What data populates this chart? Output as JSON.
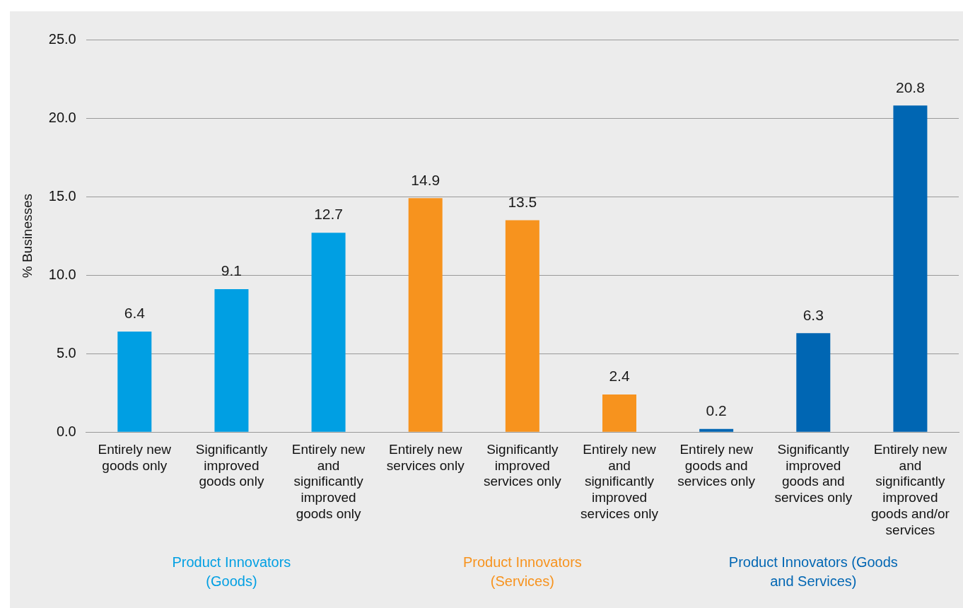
{
  "chart_data": {
    "type": "bar",
    "ylabel": "% Businesses",
    "categories": [
      "Entirely new goods only",
      "Significantly improved goods only",
      "Entirely new and significantly improved goods only",
      "Entirely new services only",
      "Significantly improved services only",
      "Entirely new and significantly improved services only",
      "Entirely new goods and services only",
      "Significantly improved goods and services only",
      "Entirely new and significantly improved goods and/or services"
    ],
    "series": [
      {
        "name": "Product Innovators (Goods)",
        "color": "#009fe3",
        "values": [
          6.4,
          9.1,
          12.7,
          null,
          null,
          null,
          null,
          null,
          null
        ]
      },
      {
        "name": "Product Innovators (Services)",
        "color": "#f7931e",
        "values": [
          null,
          null,
          null,
          14.9,
          13.5,
          2.4,
          null,
          null,
          null
        ]
      },
      {
        "name": "Product Innovators (Goods and Services)",
        "color": "#0066b3",
        "values": [
          null,
          null,
          null,
          null,
          null,
          null,
          0.2,
          6.3,
          20.8
        ]
      }
    ],
    "ylim": [
      0,
      25
    ],
    "yticks": [
      {
        "value": 0,
        "label": "0.0"
      },
      {
        "value": 5,
        "label": "5.0"
      },
      {
        "value": 10,
        "label": "10.0"
      },
      {
        "value": 15,
        "label": "15.0"
      },
      {
        "value": 20,
        "label": "20.0"
      },
      {
        "value": 25,
        "label": "25.0"
      }
    ],
    "grid": "y",
    "legend": false,
    "data_labels": true
  }
}
